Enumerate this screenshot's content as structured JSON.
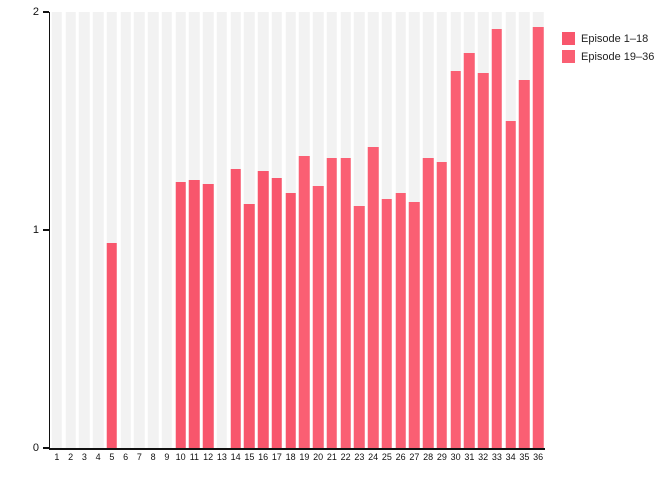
{
  "chart_data": {
    "type": "bar",
    "title": "",
    "xlabel": "",
    "ylabel": "",
    "categories": [
      "1",
      "2",
      "3",
      "4",
      "5",
      "6",
      "7",
      "8",
      "9",
      "10",
      "11",
      "12",
      "13",
      "14",
      "15",
      "16",
      "17",
      "18",
      "19",
      "20",
      "21",
      "22",
      "23",
      "24",
      "25",
      "26",
      "27",
      "28",
      "29",
      "30",
      "31",
      "32",
      "33",
      "34",
      "35",
      "36"
    ],
    "values": [
      0,
      0,
      0,
      0,
      0.94,
      0,
      0,
      0,
      0,
      1.22,
      1.23,
      1.21,
      0,
      1.28,
      1.12,
      1.27,
      1.24,
      1.17,
      1.34,
      1.2,
      1.33,
      1.33,
      1.11,
      1.38,
      1.14,
      1.17,
      1.13,
      1.33,
      1.31,
      1.73,
      1.81,
      1.72,
      1.92,
      1.5,
      1.69,
      1.93
    ],
    "series": [
      {
        "name": "Episode 1–18",
        "color": "#f8566c",
        "category_range": [
          1,
          18
        ]
      },
      {
        "name": "Episode 19–36",
        "color": "#fa5f73",
        "category_range": [
          19,
          36
        ]
      }
    ],
    "ylim": [
      0,
      2
    ],
    "yticks": [
      "0",
      "1",
      "2"
    ],
    "grid": false,
    "column_track_color": "#f2f2f2",
    "legend_position": "top-right"
  },
  "legend": {
    "items": [
      {
        "label": "Episode 1–18"
      },
      {
        "label": "Episode 19–36"
      }
    ]
  },
  "colors": {
    "bar_group_1": "#f8566c",
    "bar_group_2": "#fa5f73",
    "track": "#f2f2f2",
    "axis": "#111111",
    "background": "#ffffff"
  }
}
